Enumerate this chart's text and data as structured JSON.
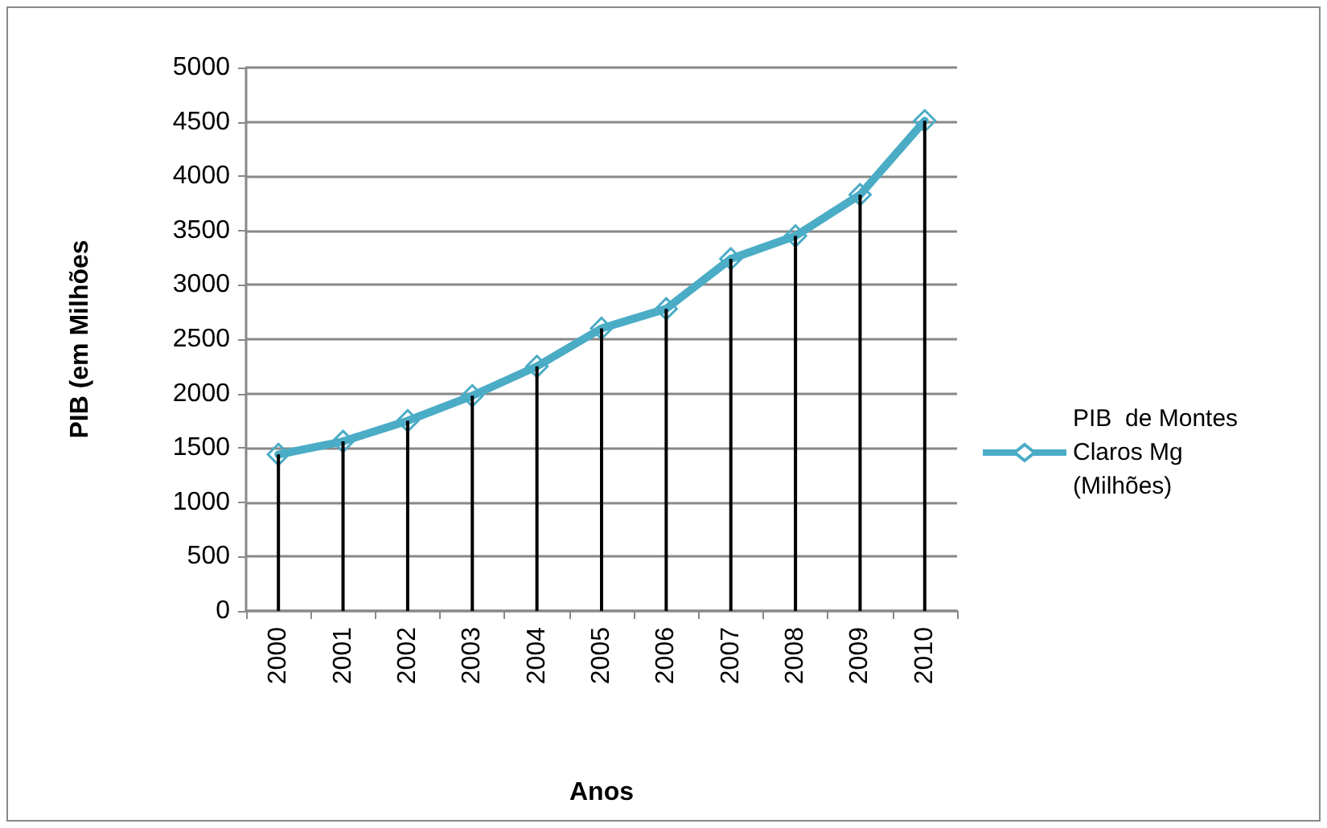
{
  "chart_data": {
    "type": "line",
    "xlabel": "Anos",
    "ylabel": "PIB (em Milhões",
    "categories": [
      "2000",
      "2001",
      "2002",
      "2003",
      "2004",
      "2005",
      "2006",
      "2007",
      "2008",
      "2009",
      "2010"
    ],
    "series": [
      {
        "type": "bar",
        "color": "#000000",
        "values": [
          1440,
          1560,
          1750,
          1980,
          2250,
          2600,
          2780,
          3240,
          3450,
          3830,
          4510
        ]
      },
      {
        "name": "PIB  de Montes Claros Mg (Milhões)",
        "color": "#4bacc6",
        "values": [
          1440,
          1560,
          1750,
          1980,
          2250,
          2600,
          2780,
          3240,
          3450,
          3830,
          4510
        ]
      }
    ],
    "ylim": [
      0,
      5000
    ],
    "yticks": [
      0,
      500,
      1000,
      1500,
      2000,
      2500,
      3000,
      3500,
      4000,
      4500,
      5000
    ],
    "grid": "y",
    "legend": "right",
    "marker": "diamond",
    "line_style": "solid"
  }
}
